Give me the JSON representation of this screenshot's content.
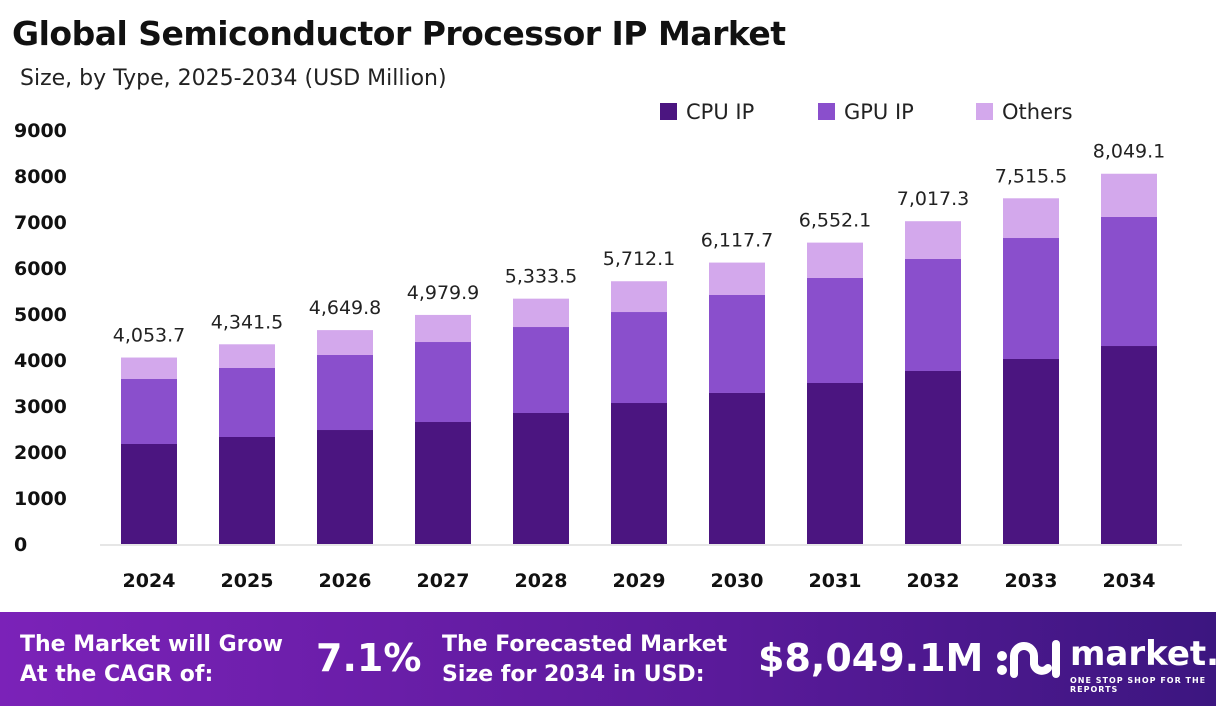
{
  "chart_data": {
    "type": "bar",
    "stacked": true,
    "title": "Global Semiconductor Processor IP Market",
    "subtitle": "Size, by Type, 2025-2034 (USD Million)",
    "categories": [
      "2024",
      "2025",
      "2026",
      "2027",
      "2028",
      "2029",
      "2030",
      "2031",
      "2032",
      "2033",
      "2034"
    ],
    "series": [
      {
        "name": "CPU IP",
        "color": "#4b1580",
        "values": [
          2174,
          2326,
          2478,
          2652,
          2848,
          3065,
          3283,
          3500,
          3761,
          4022,
          4304
        ]
      },
      {
        "name": "GPU IP",
        "color": "#8a4fcc",
        "values": [
          1413,
          1500,
          1631,
          1739,
          1869,
          1978,
          2130,
          2283,
          2435,
          2630,
          2805
        ]
      },
      {
        "name": "Others",
        "color": "#d3a8ec",
        "values": [
          466.7,
          515.5,
          540.8,
          588.9,
          616.5,
          669.1,
          704.7,
          769.1,
          821.3,
          863.5,
          940.1
        ]
      }
    ],
    "totals": [
      "4,053.7",
      "4,341.5",
      "4,649.8",
      "4,979.9",
      "5,333.5",
      "5,712.1",
      "6,117.7",
      "6,552.1",
      "7,017.3",
      "7,515.5",
      "8,049.1"
    ],
    "yticks": [
      "0",
      "1000",
      "2000",
      "3000",
      "4000",
      "5000",
      "6000",
      "7000",
      "8000",
      "9000"
    ],
    "ylim": [
      0,
      9000
    ],
    "legend_position": "top-right",
    "grid": false
  },
  "footer": {
    "cagr_label_1": "The Market will Grow",
    "cagr_label_2": "At the CAGR of:",
    "cagr_value": "7.1%",
    "forecast_label_1": "The Forecasted Market",
    "forecast_label_2": "Size for 2034 in USD:",
    "forecast_value": "$8,049.1M",
    "logo_text": "market.us",
    "logo_tagline": "ONE STOP SHOP FOR THE REPORTS"
  }
}
